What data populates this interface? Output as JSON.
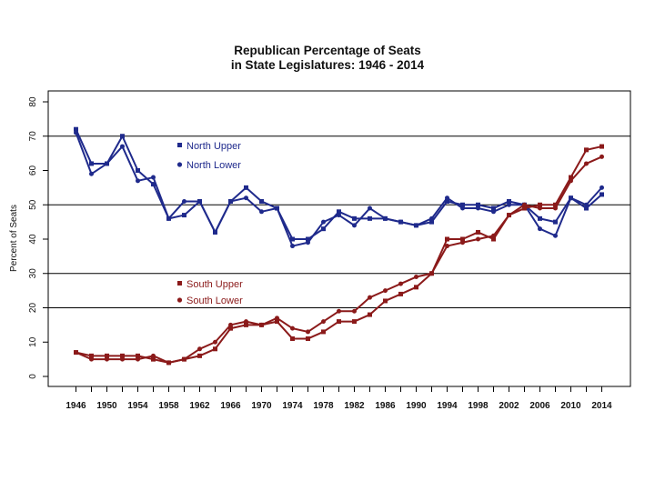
{
  "chart_data": {
    "type": "line",
    "title_line1": "Republican Percentage of Seats",
    "title_line2": "in State Legislatures: 1946 - 2014",
    "ylabel": "Percent of Seats",
    "xlabel": "",
    "xlim": [
      1945,
      2015
    ],
    "ylim": [
      0,
      80
    ],
    "x_ticks": [
      "1946",
      "1950",
      "1954",
      "1958",
      "1962",
      "1966",
      "1970",
      "1974",
      "1978",
      "1982",
      "1986",
      "1990",
      "1994",
      "1998",
      "2002",
      "2006",
      "2010",
      "2014"
    ],
    "y_ticks": [
      "0",
      "10",
      "20",
      "30",
      "40",
      "50",
      "60",
      "70",
      "80"
    ],
    "gridlines_y": [
      20,
      30,
      50,
      70
    ],
    "x": [
      1946,
      1948,
      1950,
      1952,
      1954,
      1956,
      1958,
      1960,
      1962,
      1964,
      1966,
      1968,
      1970,
      1972,
      1974,
      1976,
      1978,
      1980,
      1982,
      1984,
      1986,
      1988,
      1990,
      1992,
      1994,
      1996,
      1998,
      2000,
      2002,
      2004,
      2006,
      2008,
      2010,
      2012,
      2014
    ],
    "series": [
      {
        "name": "North Upper",
        "color": "#1f2a8c",
        "marker": "square",
        "values": [
          72,
          62,
          62,
          70,
          60,
          56,
          46,
          47,
          51,
          42,
          51,
          55,
          51,
          49,
          40,
          40,
          43,
          48,
          46,
          46,
          46,
          45,
          44,
          45,
          51,
          50,
          50,
          49,
          51,
          50,
          46,
          45,
          52,
          49,
          53
        ]
      },
      {
        "name": "North Lower",
        "color": "#1f2a8c",
        "marker": "circle",
        "values": [
          71,
          59,
          62,
          67,
          57,
          58,
          46,
          51,
          51,
          42,
          51,
          52,
          48,
          49,
          38,
          39,
          45,
          47,
          44,
          49,
          46,
          45,
          44,
          46,
          52,
          49,
          49,
          48,
          50,
          50,
          43,
          41,
          52,
          50,
          55
        ]
      },
      {
        "name": "South Upper",
        "color": "#8b1a1a",
        "marker": "square",
        "values": [
          7,
          6,
          6,
          6,
          6,
          5,
          4,
          5,
          6,
          8,
          14,
          15,
          15,
          16,
          11,
          11,
          13,
          16,
          16,
          18,
          22,
          24,
          26,
          30,
          40,
          40,
          42,
          40,
          47,
          49,
          50,
          50,
          58,
          66,
          67
        ]
      },
      {
        "name": "South Lower",
        "color": "#8b1a1a",
        "marker": "circle",
        "values": [
          7,
          5,
          5,
          5,
          5,
          6,
          4,
          5,
          8,
          10,
          15,
          16,
          15,
          17,
          14,
          13,
          16,
          19,
          19,
          23,
          25,
          27,
          29,
          30,
          38,
          39,
          40,
          41,
          47,
          50,
          49,
          49,
          57,
          62,
          64
        ]
      }
    ]
  }
}
